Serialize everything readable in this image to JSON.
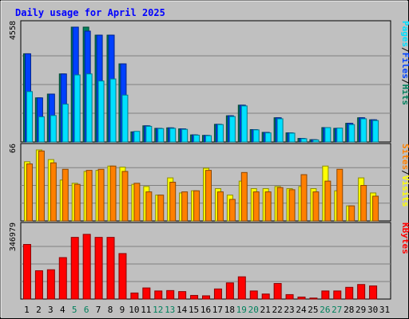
{
  "chart_data": {
    "type": "bar",
    "title": "Daily usage for April 2025",
    "categories": [
      "1",
      "2",
      "3",
      "4",
      "5",
      "6",
      "7",
      "8",
      "9",
      "10",
      "11",
      "12",
      "13",
      "14",
      "15",
      "16",
      "17",
      "18",
      "19",
      "20",
      "21",
      "22",
      "23",
      "24",
      "25",
      "26",
      "27",
      "28",
      "29",
      "30",
      "31"
    ],
    "weekend_days": [
      "5",
      "6",
      "12",
      "13",
      "19",
      "20",
      "26",
      "27"
    ],
    "colors": {
      "hits": "#00805c",
      "files": "#0040ff",
      "pages": "#00e0ff",
      "visits": "#ffff00",
      "sites": "#ff8000",
      "kbytes": "#ff0000",
      "title": "#0000ff",
      "weekend_label": "#00805c",
      "plot_bg": "#c0c0c0",
      "frame_bg": "#c0c0c0"
    },
    "panels": [
      {
        "id": "hits-files-pages",
        "y_max_label": "4558",
        "y_max": 4558,
        "legend": [
          "Pages",
          "/",
          "Files",
          "/",
          "Hits"
        ],
        "series": [
          {
            "name": "Hits",
            "values": [
              3500,
              1750,
              1900,
              2700,
              4558,
              4558,
              4240,
              4240,
              3100,
              400,
              640,
              540,
              560,
              520,
              280,
              260,
              700,
              1040,
              1460,
              490,
              380,
              960,
              360,
              140,
              90,
              570,
              540,
              740,
              960,
              880,
              0
            ]
          },
          {
            "name": "Files",
            "values": [
              3500,
              1750,
              1900,
              2700,
              4558,
              4400,
              4240,
              4240,
              3100,
              400,
              640,
              540,
              560,
              520,
              280,
              260,
              700,
              1040,
              1460,
              490,
              380,
              960,
              360,
              140,
              90,
              570,
              540,
              740,
              960,
              880,
              0
            ]
          },
          {
            "name": "Pages",
            "values": [
              2000,
              1000,
              1050,
              1500,
              2660,
              2700,
              2420,
              2500,
              1860,
              420,
              620,
              530,
              540,
              500,
              270,
              250,
              690,
              1010,
              1430,
              480,
              360,
              920,
              350,
              130,
              80,
              570,
              550,
              690,
              920,
              850,
              0
            ]
          }
        ]
      },
      {
        "id": "visits-sites",
        "y_max_label": "66",
        "y_max": 66,
        "legend": [
          "Sites",
          "/",
          "Visits"
        ],
        "series": [
          {
            "name": "Visits",
            "values": [
              55,
              66,
              57,
              38,
              35,
              46,
              47,
              51,
              50,
              34,
              32,
              24,
              40,
              26,
              28,
              49,
              30,
              24,
              37,
              30,
              30,
              32,
              30,
              32,
              30,
              51,
              28,
              14,
              40,
              26,
              0
            ]
          },
          {
            "name": "Sites",
            "values": [
              53,
              65,
              54,
              48,
              34,
              47,
              48,
              51,
              46,
              35,
              27,
              24,
              36,
              27,
              28,
              47,
              27,
              20,
              45,
              27,
              27,
              31,
              29,
              43,
              27,
              37,
              48,
              14,
              33,
              23,
              0
            ]
          }
        ]
      },
      {
        "id": "kbytes",
        "y_max_label": "346979",
        "y_max": 346979,
        "legend": [
          "KBytes"
        ],
        "series": [
          {
            "name": "KBytes",
            "values": [
              270000,
              140000,
              145000,
              205000,
              305000,
              320000,
              305000,
              305000,
              225000,
              30000,
              55000,
              40000,
              42000,
              37000,
              18000,
              16000,
              50000,
              80000,
              110000,
              40000,
              25000,
              77000,
              22000,
              10000,
              5000,
              40000,
              40000,
              58000,
              72000,
              65000,
              0
            ]
          }
        ]
      }
    ]
  }
}
